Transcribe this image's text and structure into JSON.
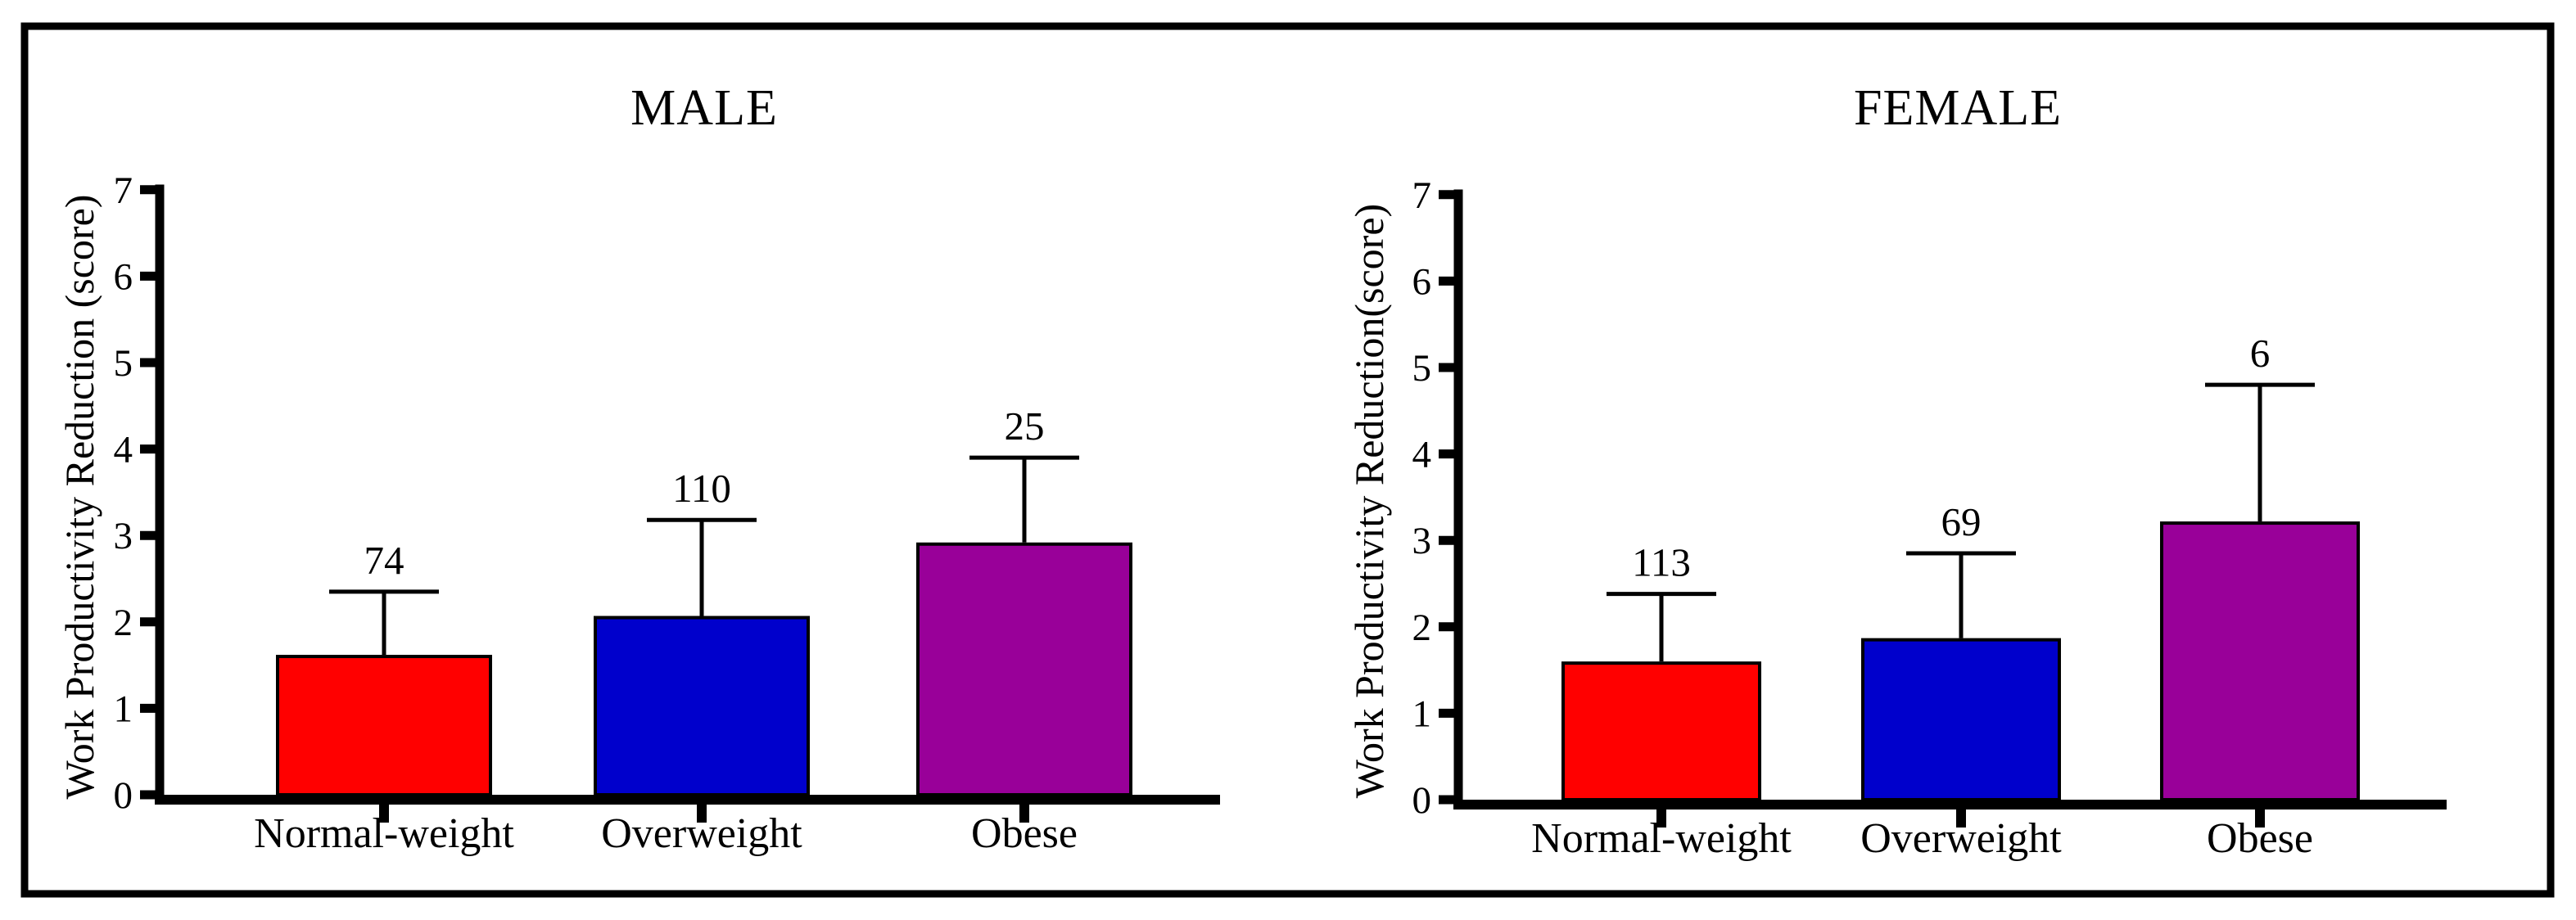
{
  "figure": {
    "background": "#ffffff",
    "border_color": "#000000",
    "axis_color": "#000000",
    "text_color": "#000000"
  },
  "chart_data": [
    {
      "type": "bar",
      "panel": "left",
      "title": "MALE",
      "xlabel": "",
      "ylabel": "Work Productivity Reduction (score)",
      "categories": [
        "Normal-weight",
        "Overweight",
        "Obese"
      ],
      "values": [
        1.6,
        2.05,
        2.9
      ],
      "error_tops": [
        2.35,
        3.18,
        3.9
      ],
      "bar_labels": [
        "74",
        "110",
        "25"
      ],
      "bar_colors": [
        "#FF0000",
        "#0000CC",
        "#990099"
      ],
      "ylim": [
        0,
        7
      ],
      "yticks": [
        "0",
        "1",
        "2",
        "3",
        "4",
        "5",
        "6",
        "7"
      ],
      "grid": false,
      "legend": "none"
    },
    {
      "type": "bar",
      "panel": "right",
      "title": "FEMALE",
      "xlabel": "",
      "ylabel": "Work Productivity Reduction(score)",
      "categories": [
        "Normal-weight",
        "Overweight",
        "Obese"
      ],
      "values": [
        1.58,
        1.85,
        3.2
      ],
      "error_tops": [
        2.38,
        2.85,
        4.8
      ],
      "bar_labels": [
        "113",
        "69",
        "6"
      ],
      "bar_colors": [
        "#FF0000",
        "#0000CC",
        "#990099"
      ],
      "ylim": [
        0,
        7
      ],
      "yticks": [
        "0",
        "1",
        "2",
        "3",
        "4",
        "5",
        "6",
        "7"
      ],
      "grid": false,
      "legend": "none"
    }
  ]
}
